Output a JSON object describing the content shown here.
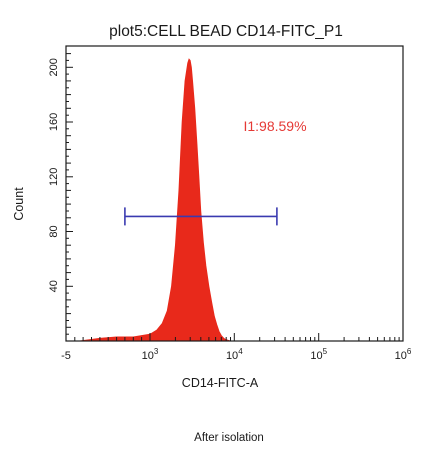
{
  "chart_data": {
    "type": "area",
    "title": "plot5:CELL BEAD CD14-FITC_P1",
    "xlabel": "CD14-FITC-A",
    "ylabel": "Count",
    "x_scale": "log",
    "xlim": [
      -5,
      1000000
    ],
    "ylim": [
      0,
      215
    ],
    "x_ticks": [
      {
        "value": -5,
        "base": "-5",
        "exp": ""
      },
      {
        "value": 1000,
        "base": "10",
        "exp": "3"
      },
      {
        "value": 10000,
        "base": "10",
        "exp": "4"
      },
      {
        "value": 100000,
        "base": "10",
        "exp": "5"
      },
      {
        "value": 1000000,
        "base": "10",
        "exp": "6"
      }
    ],
    "y_ticks": [
      40,
      80,
      120,
      160,
      200
    ],
    "series": [
      {
        "color": "#e8291b",
        "x": [
          150,
          400,
          600,
          800,
          1000,
          1200,
          1400,
          1600,
          1800,
          2000,
          2200,
          2400,
          2600,
          2800,
          2900,
          3000,
          3100,
          3200,
          3400,
          3600,
          3800,
          4000,
          4300,
          4600,
          5000,
          5400,
          5800,
          6200,
          6600,
          7000,
          7500,
          8000,
          9000,
          10000
        ],
        "values": [
          0,
          2,
          3,
          3,
          5,
          8,
          13,
          22,
          40,
          70,
          110,
          160,
          190,
          203,
          206,
          205,
          200,
          190,
          170,
          145,
          120,
          95,
          72,
          55,
          40,
          28,
          18,
          12,
          7,
          4,
          2,
          1,
          0,
          0
        ]
      }
    ],
    "gate": {
      "label": "I1:98.59%",
      "color": "#3a3ab0",
      "label_color": "#e53935",
      "x_start": 700,
      "x_end": 32000,
      "y": 91
    },
    "caption": "After isolation",
    "grid": false,
    "legend": "none"
  }
}
